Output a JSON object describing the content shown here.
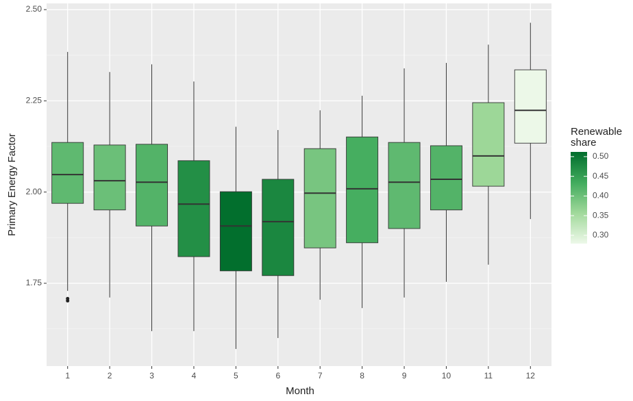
{
  "chart_data": {
    "type": "boxplot",
    "x_label": "Month",
    "y_label": "Primary Energy Factor",
    "categories": [
      "1",
      "2",
      "3",
      "4",
      "5",
      "6",
      "7",
      "8",
      "9",
      "10",
      "11",
      "12"
    ],
    "whisker_low": [
      1.729,
      1.711,
      1.619,
      1.619,
      1.57,
      1.6,
      1.705,
      1.682,
      1.711,
      1.754,
      1.801,
      1.926
    ],
    "q1": [
      1.969,
      1.951,
      1.907,
      1.823,
      1.784,
      1.771,
      1.847,
      1.861,
      1.9,
      1.951,
      2.016,
      2.134
    ],
    "median": [
      2.048,
      2.031,
      2.027,
      1.967,
      1.907,
      1.919,
      1.997,
      2.009,
      2.027,
      2.035,
      2.099,
      2.224
    ],
    "q3": [
      2.136,
      2.129,
      2.131,
      2.086,
      2.001,
      2.035,
      2.119,
      2.151,
      2.136,
      2.127,
      2.245,
      2.335
    ],
    "whisker_high": [
      2.384,
      2.329,
      2.35,
      2.303,
      2.179,
      2.17,
      2.224,
      2.264,
      2.339,
      2.354,
      2.404,
      2.464
    ],
    "outliers": [
      [
        1.702,
        1.708
      ],
      [],
      [],
      [],
      [],
      [],
      [],
      [],
      [],
      [],
      [],
      []
    ],
    "share": [
      0.41,
      0.4,
      0.42,
      0.47,
      0.51,
      0.48,
      0.39,
      0.43,
      0.41,
      0.42,
      0.36,
      0.28
    ],
    "ylim": [
      1.523,
      2.517
    ],
    "yticks": [
      {
        "value": 1.75,
        "label": "1.75"
      },
      {
        "value": 2.0,
        "label": "2.00"
      },
      {
        "value": 2.25,
        "label": "2.25"
      },
      {
        "value": 2.5,
        "label": "2.50"
      }
    ],
    "grid": true,
    "legend": {
      "title": "Renewable share",
      "limits": [
        0.279,
        0.512
      ],
      "ticks": [
        {
          "value": 0.3,
          "label": "0.30"
        },
        {
          "value": 0.35,
          "label": "0.35"
        },
        {
          "value": 0.4,
          "label": "0.40"
        },
        {
          "value": 0.45,
          "label": "0.45"
        },
        {
          "value": 0.5,
          "label": "0.50"
        }
      ],
      "colors": [
        "#edf8e9",
        "#a1d99b",
        "#41ab5d",
        "#006d2c"
      ]
    }
  }
}
